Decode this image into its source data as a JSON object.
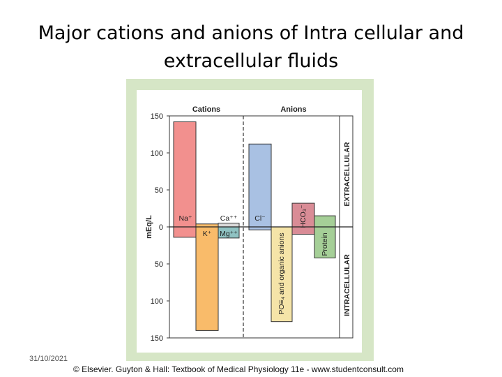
{
  "slide": {
    "title_line1": "Major cations and anions of Intra cellular and",
    "title_line2": "extracellular fluids",
    "date": "31/10/2021",
    "credit": "© Elsevier. Guyton & Hall: Textbook of Medical Physiology 11e - www.studentconsult.com"
  },
  "chart_data": {
    "type": "bar",
    "ylabel": "mEq/L",
    "section_titles": [
      "Cations",
      "Anions"
    ],
    "region_labels": [
      "EXTRACELLULAR",
      "INTRACELLULAR"
    ],
    "y_ticks": [
      "150",
      "100",
      "50",
      "0",
      "50",
      "100",
      "150"
    ],
    "ylim": [
      -150,
      150
    ],
    "bars": [
      {
        "label": "Na⁺",
        "group": "Cations",
        "extracellular": 142,
        "intracellular": 14,
        "color": "#f2908e"
      },
      {
        "label": "K⁺",
        "group": "Cations",
        "extracellular": 4,
        "intracellular": 140,
        "color": "#f9bb6a"
      },
      {
        "label": "Ca⁺⁺",
        "group": "Cations",
        "extracellular": 5,
        "intracellular": 0,
        "color": "#d9d9d9"
      },
      {
        "label": "Mg⁺⁺",
        "group": "Cations",
        "extracellular": 0,
        "intracellular": 15,
        "color": "#8fc2c2"
      },
      {
        "label": "Cl⁻",
        "group": "Anions",
        "extracellular": 112,
        "intracellular": 4,
        "color": "#a9c1e3"
      },
      {
        "label": "PO≡₄ and organic anions",
        "group": "Anions",
        "extracellular": 0,
        "intracellular": 128,
        "color": "#f5e4a8"
      },
      {
        "label": "HCO₃⁻",
        "group": "Anions",
        "extracellular": 32,
        "intracellular": 10,
        "color": "#d98c96"
      },
      {
        "label": "Protein",
        "group": "Anions",
        "extracellular": 15,
        "intracellular": 42,
        "color": "#a5cf97"
      }
    ]
  }
}
